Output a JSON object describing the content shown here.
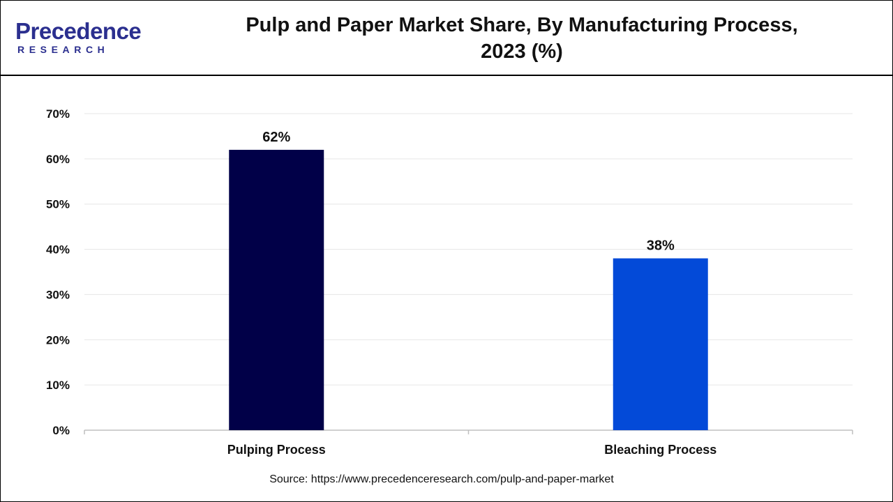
{
  "header": {
    "logo_main": "Precedence",
    "logo_sub": "RESEARCH",
    "title_line1": "Pulp and Paper Market  Share, By Manufacturing Process,",
    "title_line2": "2023 (%)"
  },
  "footer": {
    "source": "Source: https://www.precedenceresearch.com/pulp-and-paper-market"
  },
  "colors": {
    "brand": "#2b2f8f",
    "gridline": "#e6e6e6",
    "axis": "#bfbfbf"
  },
  "chart_data": {
    "type": "bar",
    "title": "Pulp and Paper Market  Share, By Manufacturing Process, 2023 (%)",
    "categories": [
      "Pulping Process",
      "Bleaching Process"
    ],
    "values": [
      62,
      38
    ],
    "data_labels": [
      "62%",
      "38%"
    ],
    "bar_colors": [
      "#010048",
      "#034ad8"
    ],
    "ylim": [
      0,
      70
    ],
    "yticks": [
      0,
      10,
      20,
      30,
      40,
      50,
      60,
      70
    ],
    "ytick_labels": [
      "0%",
      "10%",
      "20%",
      "30%",
      "40%",
      "50%",
      "60%",
      "70%"
    ],
    "xlabel": "",
    "ylabel": "",
    "grid": true,
    "legend": "none"
  }
}
